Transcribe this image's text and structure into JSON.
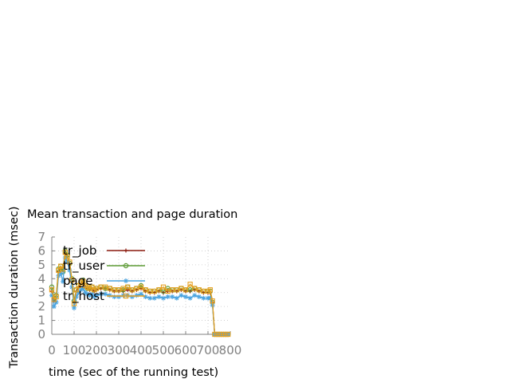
{
  "chart_data": {
    "type": "line",
    "title": "Mean transaction and page duration",
    "xlabel": "time (sec of the running test)",
    "ylabel": "Transaction duration (msec)",
    "xlim": [
      0,
      800
    ],
    "ylim": [
      0,
      7
    ],
    "xticks": [
      "0",
      "100",
      "200",
      "300",
      "400",
      "500",
      "600",
      "700",
      "800"
    ],
    "yticks": [
      "0",
      "1",
      "2",
      "3",
      "4",
      "5",
      "6",
      "7"
    ],
    "grid": true,
    "legend_position": "top-left",
    "x": [
      0,
      10,
      20,
      30,
      40,
      50,
      60,
      70,
      80,
      90,
      100,
      110,
      120,
      130,
      140,
      150,
      160,
      170,
      180,
      190,
      200,
      220,
      240,
      260,
      280,
      300,
      320,
      340,
      360,
      380,
      400,
      420,
      440,
      460,
      480,
      500,
      520,
      540,
      560,
      580,
      600,
      620,
      640,
      660,
      680,
      700,
      710,
      720,
      730,
      740,
      750,
      760,
      770,
      780,
      790
    ],
    "series": [
      {
        "name": "tr_job",
        "color": "#8b1a0e",
        "marker": "plus",
        "values": [
          3.1,
          2.4,
          2.7,
          4.5,
          4.8,
          4.6,
          5.8,
          5.6,
          5.0,
          3.8,
          2.3,
          3.1,
          3.4,
          3.6,
          3.8,
          3.4,
          3.3,
          3.2,
          3.3,
          3.1,
          3.2,
          3.3,
          3.3,
          3.2,
          3.1,
          3.1,
          3.1,
          3.2,
          3.1,
          3.2,
          3.3,
          3.1,
          3.0,
          3.0,
          3.1,
          3.0,
          3.1,
          3.1,
          3.1,
          3.2,
          3.1,
          3.1,
          3.2,
          3.1,
          3.0,
          3.0,
          3.0,
          2.3,
          0.0,
          0.0,
          0.0,
          0.0,
          0.0,
          0.0,
          0.0
        ]
      },
      {
        "name": "tr_user",
        "color": "#5e9c36",
        "marker": "circle",
        "values": [
          3.4,
          2.6,
          2.8,
          4.7,
          4.9,
          4.5,
          6.0,
          5.7,
          5.1,
          4.0,
          2.4,
          3.2,
          3.5,
          3.7,
          3.9,
          3.5,
          3.3,
          3.3,
          3.4,
          3.2,
          3.3,
          3.4,
          3.3,
          3.3,
          3.2,
          3.2,
          3.2,
          3.4,
          3.2,
          3.3,
          3.5,
          3.2,
          3.1,
          3.1,
          3.2,
          3.1,
          3.3,
          3.2,
          3.2,
          3.3,
          3.2,
          3.2,
          3.3,
          3.2,
          3.1,
          3.1,
          3.1,
          2.3,
          0.0,
          0.0,
          0.0,
          0.0,
          0.0,
          0.0,
          0.0
        ]
      },
      {
        "name": "page",
        "color": "#4aa3df",
        "marker": "star",
        "values": [
          2.8,
          2.0,
          2.3,
          4.2,
          4.4,
          3.8,
          5.5,
          5.2,
          4.6,
          3.4,
          1.9,
          2.7,
          3.0,
          3.2,
          3.3,
          3.0,
          2.9,
          2.8,
          2.9,
          2.7,
          2.8,
          2.9,
          2.9,
          2.8,
          2.7,
          2.7,
          2.8,
          2.8,
          2.7,
          2.8,
          2.9,
          2.7,
          2.6,
          2.6,
          2.7,
          2.6,
          2.7,
          2.7,
          2.6,
          2.8,
          2.7,
          2.6,
          2.8,
          2.7,
          2.6,
          2.6,
          2.6,
          2.1,
          0.0,
          0.0,
          0.0,
          0.0,
          0.0,
          0.0,
          0.0
        ]
      },
      {
        "name": "tr_host",
        "color": "#e6a020",
        "marker": "square",
        "values": [
          3.2,
          2.5,
          2.7,
          4.6,
          4.9,
          4.7,
          5.9,
          5.6,
          5.2,
          3.9,
          2.2,
          3.2,
          3.5,
          3.7,
          3.8,
          3.5,
          3.4,
          3.3,
          3.4,
          3.2,
          3.3,
          3.4,
          3.4,
          3.3,
          3.2,
          3.2,
          3.3,
          3.4,
          3.2,
          3.3,
          3.4,
          3.2,
          3.1,
          3.1,
          3.2,
          3.4,
          3.1,
          3.2,
          3.2,
          3.3,
          3.2,
          3.6,
          3.3,
          3.2,
          3.1,
          3.1,
          3.2,
          2.4,
          0.0,
          0.0,
          0.0,
          0.0,
          0.0,
          0.0,
          0.0
        ]
      }
    ]
  }
}
